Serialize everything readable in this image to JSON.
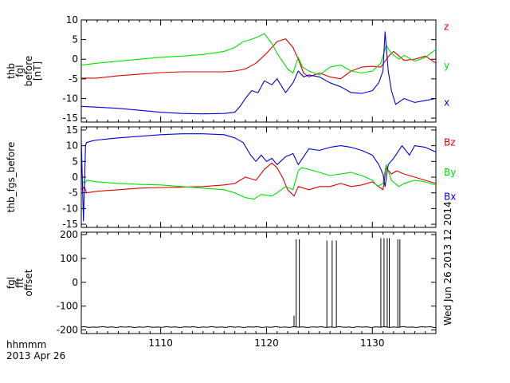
{
  "footer": {
    "time_unit": "hhmmm",
    "date": "2013 Apr 26",
    "stamp": "Wed Jun 26 2013 12 2014"
  },
  "colors": {
    "red": "#e00000",
    "green": "#00e000",
    "blue": "#0000e0",
    "black": "#000000"
  },
  "x_axis": {
    "range": [
      1102.5,
      1136
    ],
    "ticks": [
      {
        "value": 1110,
        "label": "1110"
      },
      {
        "value": 1120,
        "label": "1120"
      },
      {
        "value": 1130,
        "label": "1130"
      }
    ]
  },
  "chart_data": [
    {
      "type": "line",
      "ylabel_lines": [
        "thb",
        "fgl",
        "before",
        "[nT]"
      ],
      "ylim": [
        -16,
        10
      ],
      "yticks": [
        {
          "value": 10,
          "label": "10"
        },
        {
          "value": 5,
          "label": "5"
        },
        {
          "value": 0,
          "label": "0"
        },
        {
          "value": -5,
          "label": "-5"
        },
        {
          "value": -10,
          "label": "-10"
        },
        {
          "value": -15,
          "label": "-15"
        }
      ],
      "series": [
        {
          "name": "z",
          "color": "red",
          "label_value": 8.3,
          "x": [
            1102.5,
            1104,
            1106,
            1108,
            1110,
            1112,
            1114,
            1116,
            1117,
            1118,
            1119,
            1120,
            1121,
            1121.8,
            1122.5,
            1123,
            1123.5,
            1124,
            1125,
            1126,
            1127,
            1128,
            1129,
            1130,
            1130.8,
            1131.2,
            1131.6,
            1132,
            1133,
            1134,
            1135,
            1136
          ],
          "y": [
            -4.8,
            -4.8,
            -4.2,
            -3.8,
            -3.4,
            -3.2,
            -3.2,
            -3.2,
            -3,
            -2.5,
            -1,
            1.5,
            4.5,
            5.2,
            3,
            0,
            -3.5,
            -4.5,
            -3.5,
            -4.5,
            -5,
            -3,
            -2,
            -1.8,
            -2,
            -0.5,
            1,
            2,
            -0.3,
            0,
            0.8,
            -1
          ]
        },
        {
          "name": "y",
          "color": "green",
          "label_value": -1.6,
          "x": [
            1102.5,
            1104,
            1106,
            1108,
            1110,
            1112,
            1114,
            1116,
            1117,
            1117.8,
            1118.5,
            1119,
            1119.8,
            1120.5,
            1121,
            1121.5,
            1122,
            1122.5,
            1123,
            1123.4,
            1124,
            1125,
            1126,
            1127,
            1128,
            1129,
            1130,
            1130.8,
            1131.3,
            1131.8,
            1132.5,
            1133,
            1134,
            1135,
            1136
          ],
          "y": [
            -1.5,
            -1,
            -0.5,
            0,
            0.5,
            0.8,
            1.2,
            2,
            3,
            4.5,
            5,
            5.5,
            6.5,
            4,
            1.5,
            -0.5,
            -2.5,
            -3.5,
            0.5,
            -2,
            -3,
            -4,
            -2,
            -1.5,
            -3,
            -3.5,
            -3,
            -1,
            3.5,
            1.5,
            0,
            1,
            -0.5,
            0.5,
            2.5
          ]
        },
        {
          "name": "x",
          "color": "blue",
          "label_value": -11,
          "x": [
            1102.5,
            1104,
            1106,
            1108,
            1110,
            1112,
            1114,
            1116,
            1117,
            1117.5,
            1118,
            1118.6,
            1119.2,
            1119.8,
            1120.5,
            1121,
            1121.8,
            1122.5,
            1123,
            1123.5,
            1124,
            1125,
            1126,
            1127,
            1128,
            1129,
            1130,
            1130.6,
            1131,
            1131.2,
            1131.5,
            1131.8,
            1132.2,
            1133,
            1134,
            1135,
            1136
          ],
          "y": [
            -12,
            -12.2,
            -12.5,
            -13,
            -13.5,
            -13.8,
            -13.9,
            -13.8,
            -13.5,
            -12,
            -10,
            -8,
            -8.5,
            -5.5,
            -6.5,
            -5,
            -8.5,
            -6,
            -3,
            -4.5,
            -4,
            -4.5,
            -6,
            -7,
            -8.5,
            -8.7,
            -8,
            -6,
            -3,
            7,
            -3,
            -8,
            -11.5,
            -10,
            -11,
            -10.5,
            -10
          ]
        }
      ]
    },
    {
      "type": "line",
      "ylabel_lines": [
        "thb_fgs_before"
      ],
      "ylim": [
        -16,
        16
      ],
      "yticks": [
        {
          "value": 15,
          "label": "15"
        },
        {
          "value": 10,
          "label": "10"
        },
        {
          "value": 5,
          "label": "5"
        },
        {
          "value": 0,
          "label": "0"
        },
        {
          "value": -5,
          "label": "-5"
        },
        {
          "value": -10,
          "label": "-10"
        },
        {
          "value": -15,
          "label": "-15"
        }
      ],
      "series": [
        {
          "name": "Bz",
          "color": "red",
          "label_value": 11,
          "x": [
            1102.5,
            1102.8,
            1103,
            1104,
            1106,
            1108,
            1110,
            1112,
            1114,
            1116,
            1117,
            1118,
            1119,
            1119.8,
            1120.5,
            1121,
            1121.5,
            1122,
            1122.6,
            1123,
            1124,
            1125,
            1126,
            1127,
            1128,
            1129,
            1130,
            1130.6,
            1131,
            1131.3,
            1131.8,
            1132.3,
            1133,
            1134,
            1135,
            1136
          ],
          "y": [
            -4,
            -3,
            -5,
            -4.5,
            -4,
            -3.5,
            -3.3,
            -3.2,
            -3,
            -2.5,
            -2,
            0,
            -1,
            2.5,
            4.5,
            3,
            0,
            -4,
            -6,
            -3,
            -4,
            -3,
            -3,
            -2,
            -3,
            -2.5,
            -1.5,
            -3,
            -4,
            3,
            1,
            2,
            1,
            0,
            -1,
            -2
          ]
        },
        {
          "name": "By",
          "color": "green",
          "label_value": 1.5,
          "x": [
            1102.5,
            1102.8,
            1103,
            1104,
            1106,
            1108,
            1110,
            1112,
            1114,
            1116,
            1117,
            1118,
            1118.8,
            1119.5,
            1120.5,
            1121,
            1121.8,
            1122.5,
            1123,
            1123.3,
            1124,
            1125,
            1126,
            1127,
            1128,
            1129,
            1130,
            1130.5,
            1131,
            1131.3,
            1131.8,
            1132.5,
            1133,
            1134,
            1135,
            1136
          ],
          "y": [
            -1,
            -2,
            -1,
            -1.5,
            -2,
            -2.3,
            -2.5,
            -3,
            -3.5,
            -4,
            -5,
            -6.5,
            -7,
            -5.5,
            -6,
            -5,
            -3,
            -4,
            2,
            3,
            2.5,
            1.5,
            0.5,
            1,
            1.5,
            0.5,
            -1,
            -3,
            -2,
            4,
            -1,
            -3,
            -2,
            -1,
            -1.5,
            -2.5
          ]
        },
        {
          "name": "Bx",
          "color": "blue",
          "label_value": -6.2,
          "x": [
            1102.5,
            1102.7,
            1102.9,
            1103,
            1103.5,
            1104,
            1106,
            1108,
            1110,
            1112,
            1114,
            1116,
            1117,
            1117.8,
            1118.5,
            1119,
            1119.5,
            1120,
            1120.5,
            1121,
            1121.8,
            1122.5,
            1123,
            1124,
            1125,
            1126,
            1127,
            1128,
            1129,
            1130,
            1130.6,
            1131,
            1131.2,
            1131.5,
            1132,
            1132.8,
            1133.5,
            1134,
            1135,
            1136
          ],
          "y": [
            12,
            -14,
            10,
            11,
            11.5,
            11.8,
            12.5,
            13,
            13.5,
            13.8,
            13.8,
            13.5,
            12.5,
            11,
            7,
            5,
            7,
            5,
            6,
            4,
            6.5,
            7.5,
            4,
            9,
            8.5,
            9.5,
            10,
            9.5,
            8.5,
            7,
            4,
            1,
            -3,
            4,
            6,
            10,
            7,
            10,
            9.5,
            8
          ]
        }
      ]
    },
    {
      "type": "line",
      "ylabel_lines": [
        "fgl",
        "fft",
        "offset"
      ],
      "ylim": [
        -215,
        210
      ],
      "yticks": [
        {
          "value": 200,
          "label": "200"
        },
        {
          "value": 100,
          "label": "100"
        },
        {
          "value": 0,
          "label": "0"
        },
        {
          "value": -100,
          "label": "-100"
        },
        {
          "value": -200,
          "label": "-200"
        }
      ],
      "baseline": -188,
      "spikes": [
        {
          "x": 1122.6,
          "y": -140
        },
        {
          "x": 1122.8,
          "y": 180
        },
        {
          "x": 1123.1,
          "y": 180
        },
        {
          "x": 1125.7,
          "y": 175
        },
        {
          "x": 1126.2,
          "y": 175
        },
        {
          "x": 1126.6,
          "y": 175
        },
        {
          "x": 1130.8,
          "y": 185
        },
        {
          "x": 1131.1,
          "y": 185
        },
        {
          "x": 1131.4,
          "y": 185
        },
        {
          "x": 1131.6,
          "y": 185
        },
        {
          "x": 1132.4,
          "y": 180
        },
        {
          "x": 1132.6,
          "y": 180
        }
      ]
    }
  ]
}
